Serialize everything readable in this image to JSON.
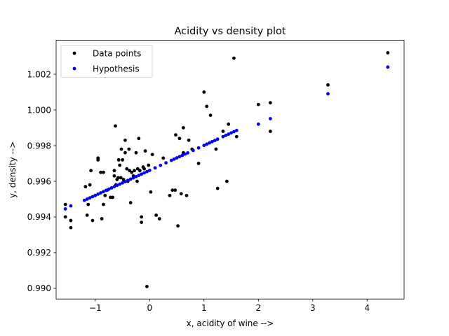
{
  "chart_data": {
    "type": "scatter",
    "title": "Acidity vs density plot",
    "xlabel": "x, acidity of wine -->",
    "ylabel": "y, density -->",
    "xlim": [
      -1.72,
      4.68
    ],
    "ylim": [
      0.9894,
      1.0039
    ],
    "xticks": [
      -1,
      0,
      1,
      2,
      3,
      4
    ],
    "xtick_labels": [
      "−1",
      "0",
      "1",
      "2",
      "3",
      "4"
    ],
    "yticks": [
      0.99,
      0.992,
      0.994,
      0.996,
      0.998,
      1.0,
      1.002
    ],
    "ytick_labels": [
      "0.990",
      "0.992",
      "0.994",
      "0.996",
      "0.998",
      "1.000",
      "1.002"
    ],
    "grid": false,
    "legend_position": "upper-left",
    "series": [
      {
        "name": "Data points",
        "color": "#000000",
        "points": [
          [
            -1.55,
            0.9947
          ],
          [
            -1.55,
            0.994
          ],
          [
            -1.45,
            0.9938
          ],
          [
            -1.45,
            0.9934
          ],
          [
            -1.18,
            0.9957
          ],
          [
            -1.15,
            0.9941
          ],
          [
            -1.13,
            0.9947
          ],
          [
            -1.1,
            0.9958
          ],
          [
            -1.08,
            0.9966
          ],
          [
            -1.05,
            0.9938
          ],
          [
            -1.0,
            0.9952
          ],
          [
            -0.95,
            0.9973
          ],
          [
            -0.95,
            0.9972
          ],
          [
            -0.9,
            0.9965
          ],
          [
            -0.88,
            0.9939
          ],
          [
            -0.85,
            0.9947
          ],
          [
            -0.85,
            0.9965
          ],
          [
            -0.82,
            0.9952
          ],
          [
            -0.78,
            0.9955
          ],
          [
            -0.72,
            0.9951
          ],
          [
            -0.68,
            0.9951
          ],
          [
            -0.65,
            0.9966
          ],
          [
            -0.65,
            0.9963
          ],
          [
            -0.63,
            0.9991
          ],
          [
            -0.62,
            0.9958
          ],
          [
            -0.6,
            0.9961
          ],
          [
            -0.58,
            0.9962
          ],
          [
            -0.57,
            0.9972
          ],
          [
            -0.55,
            0.9969
          ],
          [
            -0.53,
            0.9962
          ],
          [
            -0.52,
            0.9978
          ],
          [
            -0.5,
            0.9972
          ],
          [
            -0.48,
            0.9961
          ],
          [
            -0.47,
            0.996
          ],
          [
            -0.45,
            0.9983
          ],
          [
            -0.45,
            0.9976
          ],
          [
            -0.42,
            0.9967
          ],
          [
            -0.4,
            0.996
          ],
          [
            -0.38,
            0.9978
          ],
          [
            -0.37,
            0.9966
          ],
          [
            -0.35,
            0.9948
          ],
          [
            -0.33,
            0.9965
          ],
          [
            -0.3,
            0.9963
          ],
          [
            -0.28,
            0.9966
          ],
          [
            -0.25,
            0.9976
          ],
          [
            -0.23,
            0.996
          ],
          [
            -0.22,
            0.9967
          ],
          [
            -0.2,
            0.9984
          ],
          [
            -0.18,
            0.9966
          ],
          [
            -0.15,
            0.994
          ],
          [
            -0.15,
            0.9937
          ],
          [
            -0.12,
            0.9968
          ],
          [
            -0.1,
            0.9967
          ],
          [
            -0.08,
            0.9977
          ],
          [
            -0.05,
            0.9901
          ],
          [
            -0.02,
            0.9969
          ],
          [
            0.02,
            0.9954
          ],
          [
            0.05,
            0.9975
          ],
          [
            0.12,
            0.9941
          ],
          [
            0.18,
            0.9939
          ],
          [
            0.25,
            0.9973
          ],
          [
            0.37,
            0.9952
          ],
          [
            0.42,
            0.9955
          ],
          [
            0.47,
            0.9955
          ],
          [
            0.48,
            0.9986
          ],
          [
            0.52,
            0.9935
          ],
          [
            0.55,
            0.9984
          ],
          [
            0.58,
            0.9953
          ],
          [
            0.62,
            0.999
          ],
          [
            0.62,
            0.9976
          ],
          [
            0.68,
            0.9952
          ],
          [
            0.72,
            0.9983
          ],
          [
            0.78,
            0.9978
          ],
          [
            0.9,
            0.997
          ],
          [
            1.0,
            1.001
          ],
          [
            1.05,
            1.0002
          ],
          [
            1.12,
            0.9997
          ],
          [
            1.22,
            0.9978
          ],
          [
            1.25,
            0.9956
          ],
          [
            1.35,
            0.9988
          ],
          [
            1.42,
            0.996
          ],
          [
            1.45,
            0.9992
          ],
          [
            1.55,
            1.0029
          ],
          [
            1.6,
            0.9985
          ],
          [
            2.0,
            1.0003
          ],
          [
            2.22,
            1.0004
          ],
          [
            2.22,
            0.9988
          ],
          [
            3.28,
            1.0014
          ],
          [
            4.38,
            1.0032
          ]
        ]
      },
      {
        "name": "Hypothesis",
        "color": "#0000ff",
        "points": [
          [
            -1.55,
            0.99445
          ],
          [
            -1.45,
            0.99462
          ],
          [
            -1.2,
            0.99493
          ],
          [
            -1.15,
            0.995
          ],
          [
            -1.1,
            0.99507
          ],
          [
            -1.05,
            0.99514
          ],
          [
            -1.0,
            0.99521
          ],
          [
            -0.95,
            0.99528
          ],
          [
            -0.9,
            0.99535
          ],
          [
            -0.85,
            0.99542
          ],
          [
            -0.8,
            0.99549
          ],
          [
            -0.75,
            0.99556
          ],
          [
            -0.7,
            0.99563
          ],
          [
            -0.65,
            0.9957
          ],
          [
            -0.6,
            0.99577
          ],
          [
            -0.55,
            0.99584
          ],
          [
            -0.5,
            0.99591
          ],
          [
            -0.45,
            0.99598
          ],
          [
            -0.4,
            0.99605
          ],
          [
            -0.35,
            0.99612
          ],
          [
            -0.3,
            0.99619
          ],
          [
            -0.25,
            0.99626
          ],
          [
            -0.2,
            0.99633
          ],
          [
            -0.15,
            0.9964
          ],
          [
            -0.1,
            0.99647
          ],
          [
            -0.05,
            0.99654
          ],
          [
            0.0,
            0.99661
          ],
          [
            0.1,
            0.99675
          ],
          [
            0.2,
            0.99689
          ],
          [
            0.3,
            0.99703
          ],
          [
            0.4,
            0.99717
          ],
          [
            0.45,
            0.99724
          ],
          [
            0.5,
            0.99731
          ],
          [
            0.55,
            0.99738
          ],
          [
            0.6,
            0.99745
          ],
          [
            0.65,
            0.99752
          ],
          [
            0.7,
            0.99759
          ],
          [
            0.8,
            0.99773
          ],
          [
            0.9,
            0.99787
          ],
          [
            1.0,
            0.99801
          ],
          [
            1.05,
            0.99808
          ],
          [
            1.1,
            0.99815
          ],
          [
            1.15,
            0.99822
          ],
          [
            1.2,
            0.99829
          ],
          [
            1.25,
            0.99836
          ],
          [
            1.35,
            0.9985
          ],
          [
            1.4,
            0.99857
          ],
          [
            1.45,
            0.99864
          ],
          [
            1.5,
            0.99871
          ],
          [
            1.55,
            0.99878
          ],
          [
            1.6,
            0.99885
          ],
          [
            2.0,
            0.9992
          ],
          [
            2.22,
            0.99951
          ],
          [
            3.28,
            1.0009
          ],
          [
            4.38,
            1.0024
          ]
        ]
      }
    ]
  }
}
